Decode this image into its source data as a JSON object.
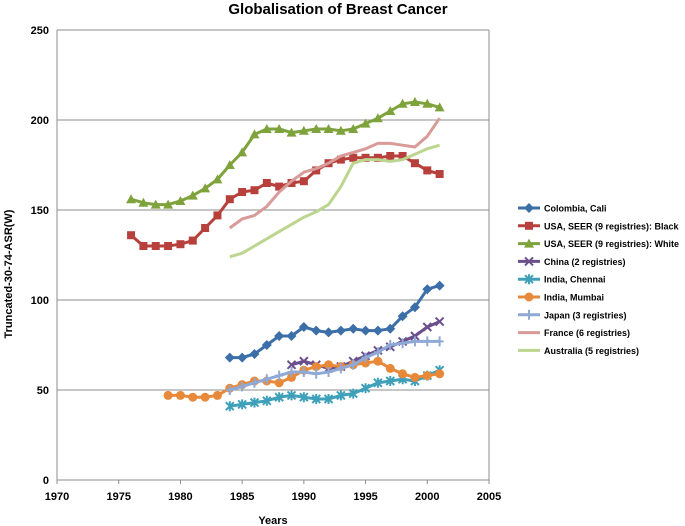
{
  "chart_data": {
    "type": "line",
    "title": "Globalisation of Breast Cancer",
    "xlabel": "Years",
    "ylabel": "Truncated-30-74-ASR(W)",
    "xlim": [
      1970,
      2005
    ],
    "ylim": [
      0,
      250
    ],
    "x_ticks": [
      "1970",
      "1975",
      "1980",
      "1985",
      "1990",
      "1995",
      "2000",
      "2005"
    ],
    "y_ticks": [
      "0",
      "50",
      "100",
      "150",
      "200",
      "250"
    ],
    "grid": "horizontal",
    "legend_position": "right",
    "series": [
      {
        "name": "Colombia, Cali",
        "color": "#3c6fa8",
        "marker": "diamond",
        "x": [
          1984,
          1985,
          1986,
          1987,
          1988,
          1989,
          1990,
          1991,
          1992,
          1993,
          1994,
          1995,
          1996,
          1997,
          1998,
          1999,
          2000,
          2001
        ],
        "y": [
          68,
          68,
          70,
          75,
          80,
          80,
          85,
          83,
          82,
          83,
          84,
          83,
          83,
          84,
          91,
          96,
          106,
          108
        ]
      },
      {
        "name": "USA, SEER (9 registries): Black",
        "color": "#b8403c",
        "marker": "square",
        "x": [
          1976,
          1977,
          1978,
          1979,
          1980,
          1981,
          1982,
          1983,
          1984,
          1985,
          1986,
          1987,
          1988,
          1989,
          1990,
          1991,
          1992,
          1993,
          1994,
          1995,
          1996,
          1997,
          1998,
          1999,
          2000,
          2001
        ],
        "y": [
          136,
          130,
          130,
          130,
          131,
          133,
          140,
          147,
          156,
          160,
          161,
          165,
          163,
          165,
          166,
          172,
          176,
          178,
          179,
          179,
          179,
          180,
          180,
          176,
          172,
          170
        ]
      },
      {
        "name": "USA, SEER (9 registries): White",
        "color": "#7fa33c",
        "marker": "triangle",
        "x": [
          1976,
          1977,
          1978,
          1979,
          1980,
          1981,
          1982,
          1983,
          1984,
          1985,
          1986,
          1987,
          1988,
          1989,
          1990,
          1991,
          1992,
          1993,
          1994,
          1995,
          1996,
          1997,
          1998,
          1999,
          2000,
          2001
        ],
        "y": [
          156,
          154,
          153,
          153,
          155,
          158,
          162,
          167,
          175,
          182,
          192,
          195,
          195,
          193,
          194,
          195,
          195,
          194,
          195,
          198,
          201,
          205,
          209,
          210,
          209,
          207
        ]
      },
      {
        "name": "China (2 registries)",
        "color": "#6a4f8c",
        "marker": "x",
        "x": [
          1989,
          1990,
          1991,
          1992,
          1993,
          1994,
          1995,
          1996,
          1997,
          1998,
          1999,
          2000,
          2001
        ],
        "y": [
          64,
          66,
          64,
          62,
          63,
          66,
          69,
          72,
          74,
          77,
          80,
          85,
          88
        ]
      },
      {
        "name": "India, Chennai",
        "color": "#3fa0b9",
        "marker": "star",
        "x": [
          1984,
          1985,
          1986,
          1987,
          1988,
          1989,
          1990,
          1991,
          1992,
          1993,
          1994,
          1995,
          1996,
          1997,
          1998,
          1999,
          2000,
          2001
        ],
        "y": [
          41,
          42,
          43,
          44,
          46,
          47,
          46,
          45,
          45,
          47,
          48,
          51,
          54,
          55,
          56,
          55,
          58,
          61
        ]
      },
      {
        "name": "India, Mumbai",
        "color": "#e8893a",
        "marker": "circle",
        "x": [
          1979,
          1980,
          1981,
          1982,
          1983,
          1984,
          1985,
          1986,
          1987,
          1988,
          1989,
          1990,
          1991,
          1992,
          1993,
          1994,
          1995,
          1996,
          1997,
          1998,
          1999,
          2000,
          2001
        ],
        "y": [
          47,
          47,
          46,
          46,
          47,
          51,
          53,
          55,
          55,
          54,
          57,
          61,
          63,
          64,
          63,
          64,
          65,
          66,
          62,
          59,
          57,
          58,
          59
        ]
      },
      {
        "name": "Japan (3 registries)",
        "color": "#8fa9d6",
        "marker": "plus",
        "x": [
          1984,
          1985,
          1986,
          1987,
          1988,
          1989,
          1990,
          1991,
          1992,
          1993,
          1994,
          1995,
          1996,
          1997,
          1998,
          1999,
          2000,
          2001
        ],
        "y": [
          50,
          52,
          54,
          56,
          58,
          60,
          60,
          59,
          60,
          62,
          64,
          68,
          71,
          75,
          76,
          77,
          77,
          77
        ]
      },
      {
        "name": "France (6 registries)",
        "color": "#d99b98",
        "marker": "none",
        "x": [
          1984,
          1985,
          1986,
          1987,
          1988,
          1989,
          1990,
          1991,
          1992,
          1993,
          1994,
          1995,
          1996,
          1997,
          1998,
          1999,
          2000,
          2001
        ],
        "y": [
          140,
          145,
          147,
          152,
          160,
          166,
          171,
          173,
          176,
          180,
          182,
          184,
          187,
          187,
          186,
          185,
          191,
          201
        ]
      },
      {
        "name": "Australia (5 registries)",
        "color": "#bcd68f",
        "marker": "none",
        "x": [
          1984,
          1985,
          1986,
          1987,
          1988,
          1989,
          1990,
          1991,
          1992,
          1993,
          1994,
          1995,
          1996,
          1997,
          1998,
          1999,
          2000,
          2001
        ],
        "y": [
          124,
          126,
          130,
          134,
          138,
          142,
          146,
          149,
          153,
          163,
          176,
          178,
          178,
          177,
          178,
          181,
          184,
          186
        ]
      }
    ]
  }
}
